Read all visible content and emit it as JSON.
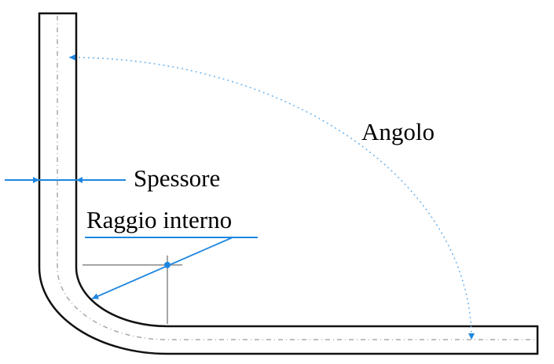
{
  "labels": {
    "thickness": "Spessore",
    "inner_radius": "Raggio interno",
    "angle": "Angolo"
  },
  "colors": {
    "dimension": "#1f86e0",
    "outline": "#111111",
    "centerline": "#9a9a9a"
  }
}
